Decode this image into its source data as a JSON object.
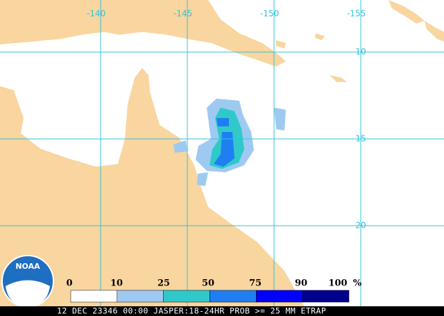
{
  "map": {
    "longitude_labels": [
      "-140",
      "-145",
      "-150",
      "-155"
    ],
    "latitude_labels": [
      "-10",
      "-15",
      "-20"
    ],
    "legend": {
      "labels": [
        "0",
        "10",
        "25",
        "50",
        "75",
        "90",
        "100"
      ],
      "unit": "%",
      "colors": [
        "#ffffff",
        "#9ecaf2",
        "#2fc9c9",
        "#1f7ff2",
        "#0000ff",
        "#00008f"
      ]
    },
    "logo": "NOAA",
    "footer": "12 DEC 23346 00:00 JASPER:18-24HR PROB >= 25 MM ETRAP"
  }
}
